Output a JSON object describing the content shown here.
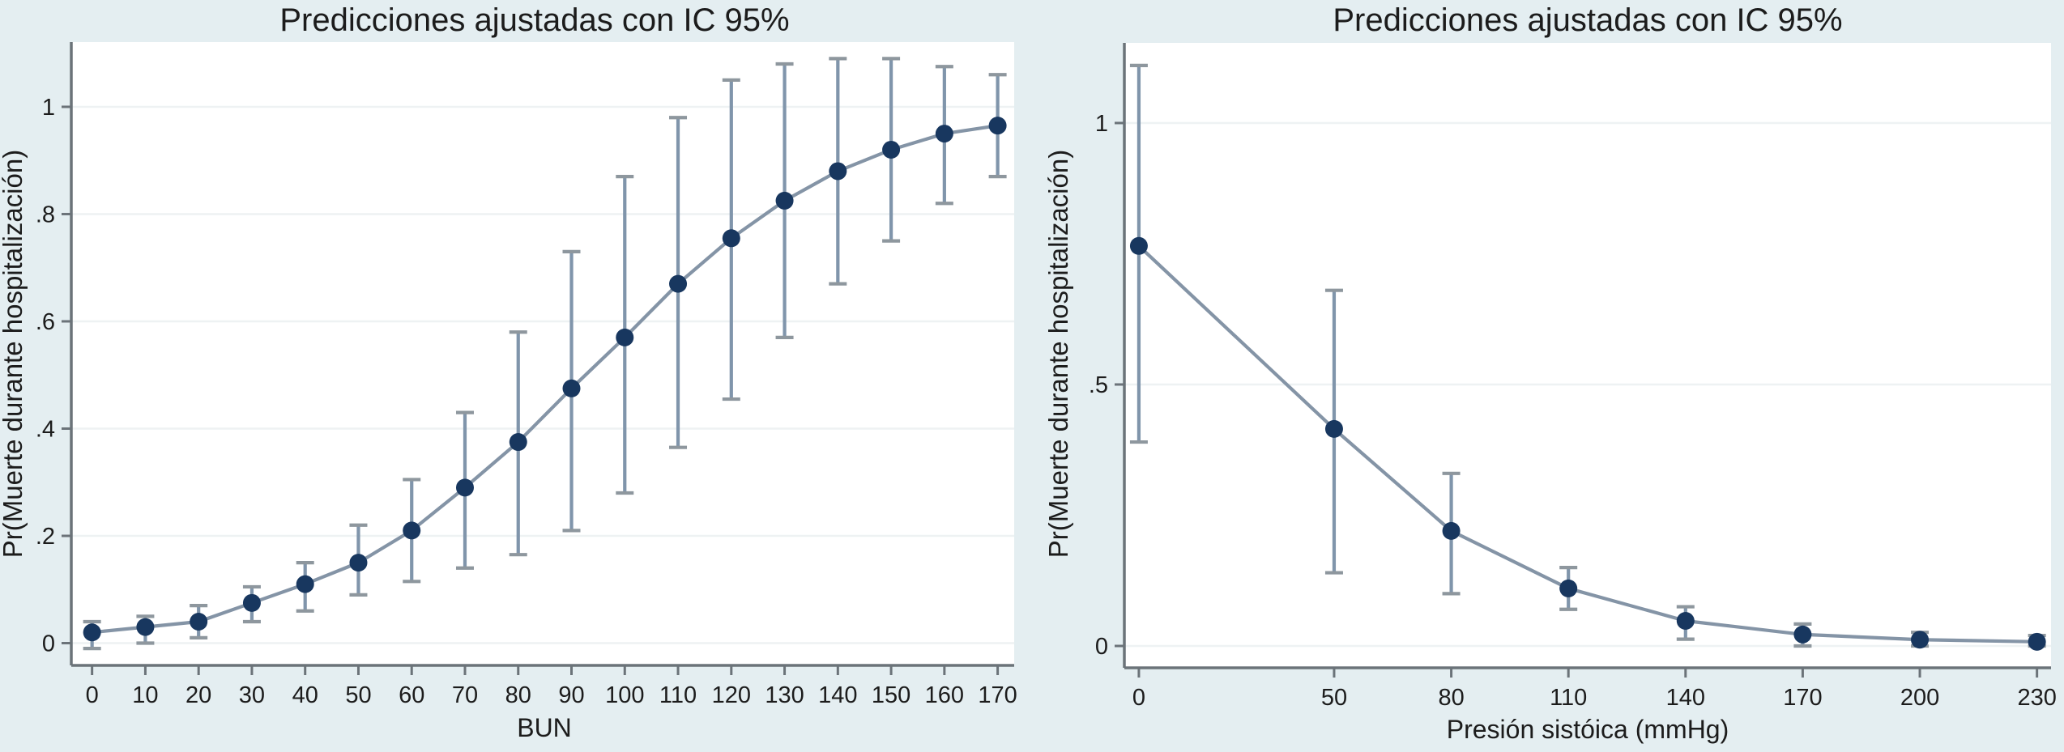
{
  "figure": {
    "description": "Two adjusted-prediction plots with 95% confidence intervals (Stata margins plots)",
    "panels": [
      "left",
      "right"
    ]
  },
  "colors": {
    "background": "#e4eef1",
    "plot_bg": "#ffffff",
    "grid": "#eef2f3",
    "axis": "#6b7379",
    "marker": "#18375f",
    "error_bar": "#8095ab",
    "error_cap": "#8e979e",
    "line": "#8494a6",
    "text": "#1c1c1c"
  },
  "chart_data": [
    {
      "type": "line",
      "title": "Predicciones ajustadas con IC 95%",
      "xlabel": "BUN",
      "ylabel": "Pr(Muerte durante hospitalización)",
      "x": [
        0,
        10,
        20,
        30,
        40,
        50,
        60,
        70,
        80,
        90,
        100,
        110,
        120,
        130,
        140,
        150,
        160,
        170
      ],
      "y": [
        0.02,
        0.03,
        0.04,
        0.075,
        0.11,
        0.15,
        0.21,
        0.29,
        0.375,
        0.475,
        0.57,
        0.67,
        0.755,
        0.825,
        0.88,
        0.92,
        0.95,
        0.965
      ],
      "ci_low": [
        -0.01,
        0.0,
        0.01,
        0.04,
        0.06,
        0.09,
        0.115,
        0.14,
        0.165,
        0.21,
        0.28,
        0.365,
        0.455,
        0.57,
        0.67,
        0.75,
        0.82,
        0.87
      ],
      "ci_high": [
        0.04,
        0.05,
        0.07,
        0.105,
        0.15,
        0.22,
        0.305,
        0.43,
        0.58,
        0.73,
        0.87,
        0.98,
        1.05,
        1.08,
        1.09,
        1.09,
        1.075,
        1.06
      ],
      "xticks": {
        "values": [
          0,
          10,
          20,
          30,
          40,
          50,
          60,
          70,
          80,
          90,
          100,
          110,
          120,
          130,
          140,
          150,
          160,
          170
        ],
        "labels": [
          "0",
          "10",
          "20",
          "30",
          "40",
          "50",
          "60",
          "70",
          "80",
          "90",
          "100",
          "110",
          "120",
          "130",
          "140",
          "150",
          "160",
          "170"
        ]
      },
      "yticks": {
        "values": [
          0,
          0.2,
          0.4,
          0.6,
          0.8,
          1
        ],
        "labels": [
          "0",
          ".2",
          ".4",
          ".6",
          ".8",
          "1"
        ]
      },
      "xlim": [
        -3.9,
        173.1
      ],
      "ylim": [
        -0.0415,
        1.1207
      ],
      "grid": true,
      "legend": "none"
    },
    {
      "type": "line",
      "title": "Predicciones ajustadas con IC 95%",
      "xlabel": "Presión sistóica (mmHg)",
      "ylabel": "Pr(Muerte durante hospitalización)",
      "x": [
        0,
        50,
        80,
        110,
        140,
        170,
        200,
        230
      ],
      "y": [
        0.765,
        0.415,
        0.22,
        0.11,
        0.048,
        0.022,
        0.012,
        0.008
      ],
      "ci_low": [
        0.39,
        0.14,
        0.1,
        0.07,
        0.013,
        0.0,
        0.0,
        0.0
      ],
      "ci_high": [
        1.11,
        0.68,
        0.33,
        0.15,
        0.075,
        0.042,
        0.026,
        0.02
      ],
      "xticks": {
        "values": [
          0,
          50,
          80,
          110,
          140,
          170,
          200,
          230
        ],
        "labels": [
          "0",
          "50",
          "80",
          "110",
          "140",
          "170",
          "200",
          "230"
        ]
      },
      "yticks": {
        "values": [
          0,
          0.5,
          1
        ],
        "labels": [
          "0",
          ".5",
          "1"
        ]
      },
      "xlim": [
        -3.72,
        233.6
      ],
      "ylim": [
        -0.0418,
        1.1532
      ],
      "grid": true,
      "legend": "none"
    }
  ]
}
